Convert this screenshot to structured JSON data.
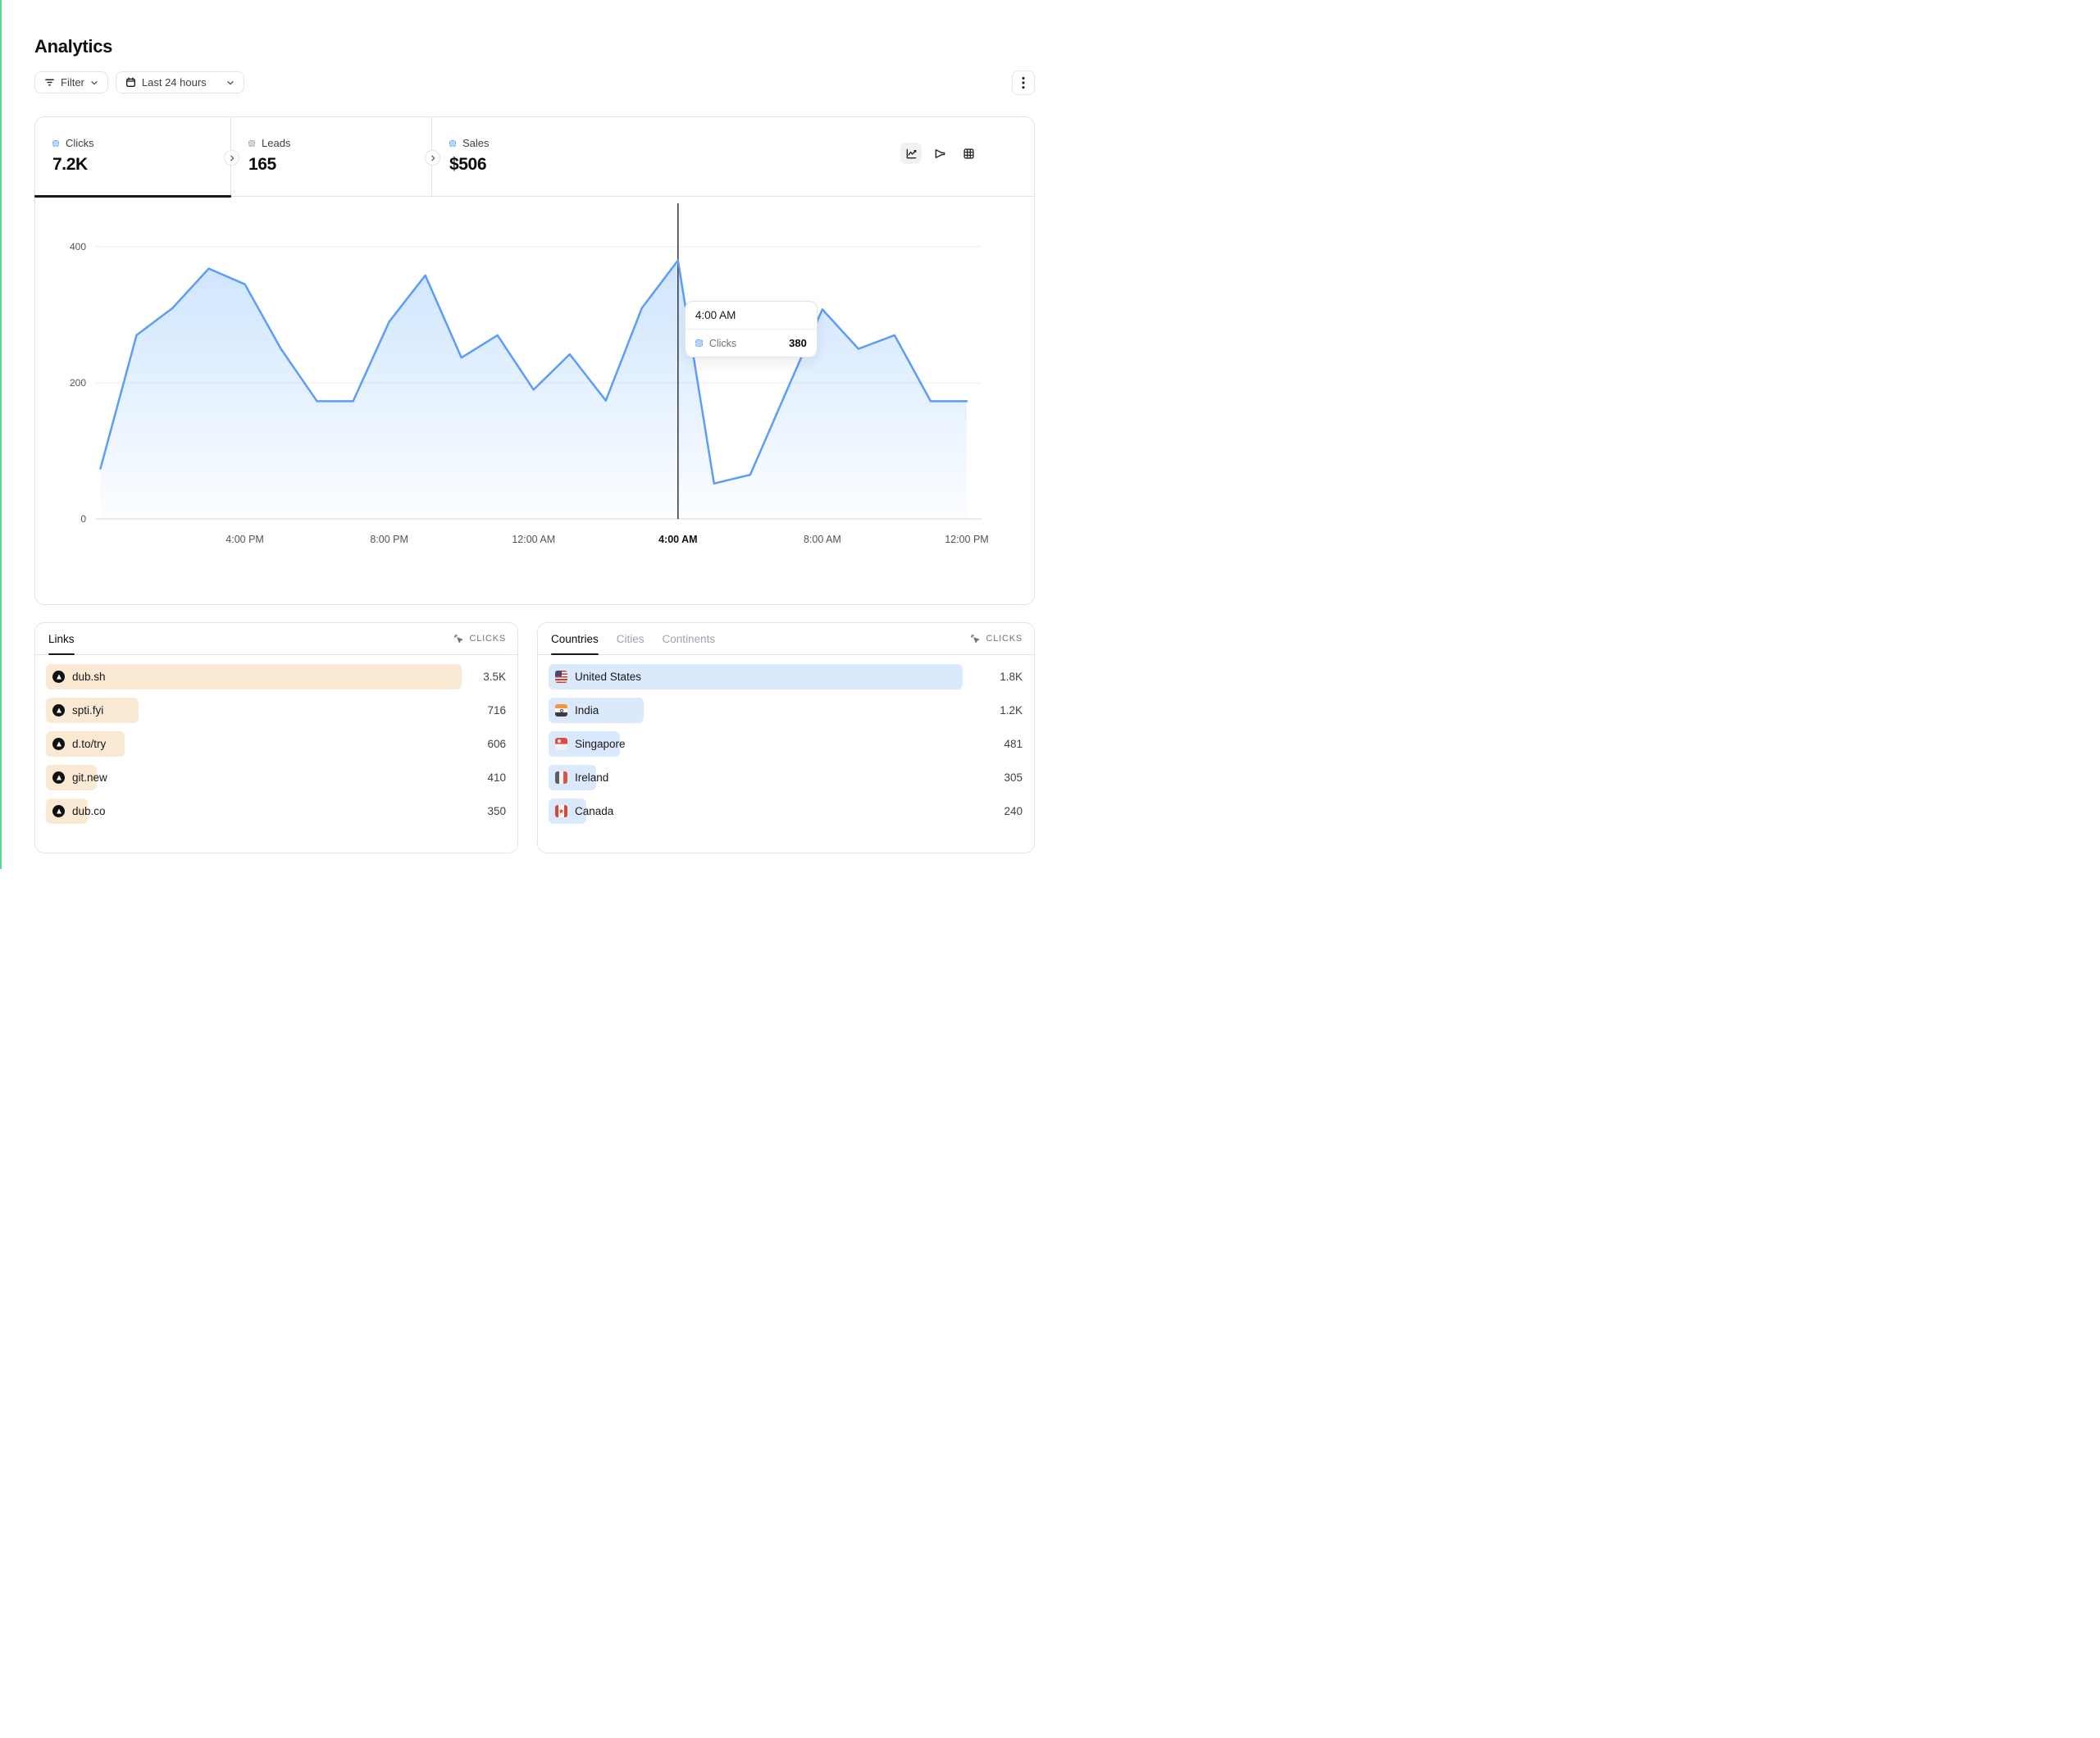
{
  "page": {
    "title": "Analytics"
  },
  "toolbar": {
    "filter_label": "Filter",
    "date_range": "Last 24 hours",
    "kebab_menu": "more-options"
  },
  "stats": [
    {
      "label": "Clicks",
      "value": "7.2K",
      "indicator_color": "#6aa5f8",
      "active": true
    },
    {
      "label": "Leads",
      "value": "165",
      "indicator_color": "#9aa7b5",
      "active": false
    },
    {
      "label": "Sales",
      "value": "$506",
      "indicator_color": "#6aa5f8",
      "active": false
    }
  ],
  "chart_type_buttons": [
    "line-chart",
    "funnel-chart",
    "table-view"
  ],
  "chart_data": {
    "type": "area",
    "title": "Clicks over last 24 hours",
    "x": [
      "12:00 PM",
      "1:00 PM",
      "2:00 PM",
      "3:00 PM",
      "4:00 PM",
      "5:00 PM",
      "6:00 PM",
      "7:00 PM",
      "8:00 PM",
      "9:00 PM",
      "10:00 PM",
      "11:00 PM",
      "12:00 AM",
      "1:00 AM",
      "2:00 AM",
      "3:00 AM",
      "4:00 AM",
      "5:00 AM",
      "6:00 AM",
      "7:00 AM",
      "8:00 AM",
      "9:00 AM",
      "10:00 AM",
      "11:00 AM",
      "12:00 PM"
    ],
    "series": [
      {
        "name": "Clicks",
        "values": [
          74,
          270,
          310,
          368,
          345,
          250,
          173,
          173,
          290,
          358,
          237,
          270,
          190,
          242,
          174,
          310,
          380,
          52,
          65,
          187,
          308,
          250,
          270,
          173,
          173
        ]
      }
    ],
    "xticks": [
      "4:00 PM",
      "8:00 PM",
      "12:00 AM",
      "4:00 AM",
      "8:00 AM",
      "12:00 PM"
    ],
    "xtick_indices": [
      4,
      8,
      12,
      16,
      20,
      24
    ],
    "yticks": [
      0,
      200,
      400
    ],
    "ylim": [
      0,
      400
    ],
    "grid": true,
    "line_color": "#5b9df8",
    "area_color": "#93c5fd",
    "hover": {
      "index": 16,
      "x_label": "4:00 AM",
      "series": "Clicks",
      "value": "380"
    }
  },
  "tooltip": {
    "time": "4:00 AM",
    "series": "Clicks",
    "value": "380"
  },
  "links_panel": {
    "tabs": [
      "Links"
    ],
    "active_tab": "Links",
    "metric_label": "CLICKS",
    "bar_color": "#fbead3",
    "rows": [
      {
        "label": "dub.sh",
        "value": "3.5K",
        "bar_pct": 90
      },
      {
        "label": "spti.fyi",
        "value": "716",
        "bar_pct": 20
      },
      {
        "label": "d.to/try",
        "value": "606",
        "bar_pct": 17
      },
      {
        "label": "git.new",
        "value": "410",
        "bar_pct": 11
      },
      {
        "label": "dub.co",
        "value": "350",
        "bar_pct": 9
      }
    ]
  },
  "countries_panel": {
    "tabs": [
      "Countries",
      "Cities",
      "Continents"
    ],
    "active_tab": "Countries",
    "metric_label": "CLICKS",
    "bar_color": "#dbe9fd",
    "rows": [
      {
        "label": "United States",
        "flag": "us",
        "value": "1.8K",
        "bar_pct": 87
      },
      {
        "label": "India",
        "flag": "in",
        "value": "1.2K",
        "bar_pct": 20
      },
      {
        "label": "Singapore",
        "flag": "sg",
        "value": "481",
        "bar_pct": 15
      },
      {
        "label": "Ireland",
        "flag": "ie",
        "value": "305",
        "bar_pct": 10
      },
      {
        "label": "Canada",
        "flag": "ca",
        "value": "240",
        "bar_pct": 8
      }
    ]
  }
}
